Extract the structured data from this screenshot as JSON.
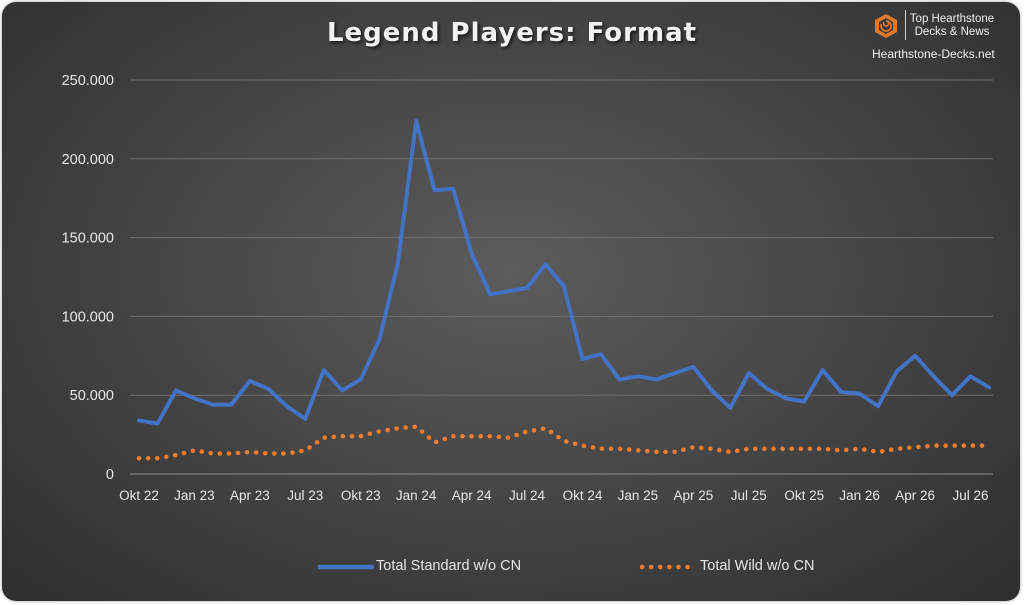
{
  "brand": {
    "line1": "Top Hearthstone",
    "line2": "Decks & News",
    "site": "Hearthstone-Decks.net",
    "logo_icon": "hexagon-swirl-logo",
    "logo_color": "#e07a2a"
  },
  "chart_data": {
    "type": "line",
    "title": "Legend Players: Format",
    "xlabel": "",
    "ylabel": "",
    "ylim": [
      0,
      250000
    ],
    "y_ticks": [
      0,
      50000,
      100000,
      150000,
      200000,
      250000
    ],
    "y_tick_labels": [
      "0",
      "50.000",
      "100.000",
      "150.000",
      "200.000",
      "250.000"
    ],
    "x_ticks": [
      "Okt 22",
      "Jan 23",
      "Apr 23",
      "Jul 23",
      "Okt 23",
      "Jan 24",
      "Apr 24",
      "Jul 24",
      "Okt 24",
      "Jan 25",
      "Apr 25",
      "Jul 25",
      "Okt 25",
      "Jan 26",
      "Apr 26",
      "Jul 26"
    ],
    "x": [
      "Okt 22",
      "Nov 22",
      "Dez 22",
      "Jan 23",
      "Feb 23",
      "Mär 23",
      "Apr 23",
      "Mai 23",
      "Jun 23",
      "Jul 23",
      "Aug 23",
      "Sep 23",
      "Okt 23",
      "Nov 23",
      "Dez 23",
      "Jan 24",
      "Feb 24",
      "Mär 24",
      "Apr 24",
      "Mai 24",
      "Jun 24",
      "Jul 24",
      "Aug 24",
      "Sep 24",
      "Okt 24",
      "Nov 24",
      "Dez 24",
      "Jan 25",
      "Feb 25",
      "Mär 25",
      "Apr 25",
      "Mai 25",
      "Jun 25",
      "Jul 25",
      "Aug 25",
      "Sep 25",
      "Okt 25",
      "Nov 25",
      "Dez 25",
      "Jan 26",
      "Feb 26",
      "Mär 26",
      "Apr 26",
      "Mai 26",
      "Jun 26",
      "Jul 26",
      "Aug 26"
    ],
    "grid": true,
    "legend_position": "bottom",
    "series": [
      {
        "name": "Total Standard w/o CN",
        "color": "#4472c4",
        "style": "solid",
        "values": [
          34000,
          32000,
          53000,
          48000,
          44000,
          44000,
          59000,
          54000,
          43000,
          35000,
          66000,
          53000,
          60000,
          85000,
          133000,
          224000,
          180000,
          181000,
          140000,
          114000,
          116000,
          118000,
          133000,
          119000,
          73000,
          76000,
          60000,
          62000,
          60000,
          64000,
          68000,
          53000,
          42000,
          64000,
          54000,
          48000,
          46000,
          66000,
          52000,
          51000,
          43000,
          65000,
          75000,
          62000,
          50000,
          62000,
          55000
        ]
      },
      {
        "name": "Total Wild w/o CN",
        "color": "#ed7d31",
        "style": "dotted",
        "values": [
          10000,
          10000,
          12000,
          15000,
          13000,
          13000,
          14000,
          13000,
          13000,
          15000,
          23000,
          24000,
          24000,
          27000,
          29000,
          30000,
          20000,
          24000,
          24000,
          24000,
          23000,
          27000,
          29000,
          21000,
          18000,
          16000,
          16000,
          15000,
          14000,
          14000,
          17000,
          16000,
          14000,
          16000,
          16000,
          16000,
          16000,
          16000,
          15000,
          16000,
          14000,
          16000,
          17000,
          18000,
          18000,
          18000,
          18000
        ]
      }
    ]
  }
}
